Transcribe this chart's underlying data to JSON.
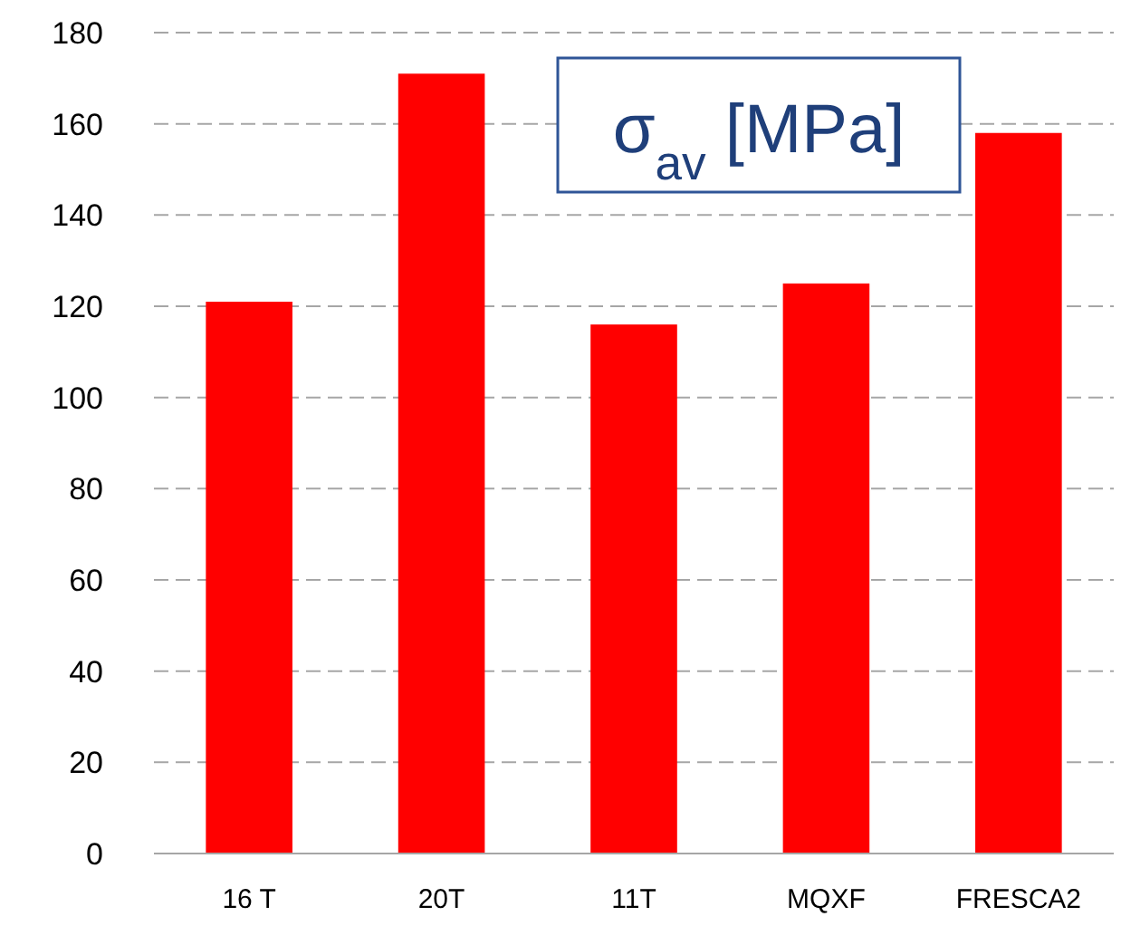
{
  "chart_data": {
    "type": "bar",
    "title": "σ$_{av}$ [MPa]",
    "categories": [
      "16 T",
      "20T",
      "11T",
      "MQXF",
      "FRESCA2"
    ],
    "values": [
      121,
      171,
      116,
      125,
      158
    ],
    "color": "#ff0000",
    "ylim": [
      0,
      180
    ],
    "yticks": [
      0,
      20,
      40,
      60,
      80,
      100,
      120,
      140,
      160,
      180
    ],
    "grid": "y"
  }
}
